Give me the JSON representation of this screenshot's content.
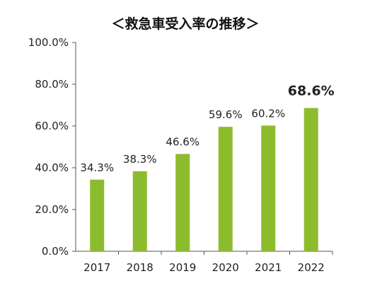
{
  "chart_data": {
    "type": "bar",
    "title": "＜救急車受入率の推移＞",
    "categories": [
      "2017",
      "2018",
      "2019",
      "2020",
      "2021",
      "2022"
    ],
    "values": [
      34.3,
      38.3,
      46.6,
      59.6,
      60.2,
      68.6
    ],
    "data_labels": [
      "34.3%",
      "38.3%",
      "46.6%",
      "59.6%",
      "60.2%",
      "68.6%"
    ],
    "emphasized_label_index": 5,
    "xlabel": "",
    "ylabel": "",
    "ylim": [
      0,
      100
    ],
    "y_ticks": [
      0,
      20,
      40,
      60,
      80,
      100
    ],
    "y_tick_labels": [
      "0.0%",
      "20.0%",
      "40.0%",
      "60.0%",
      "80.0%",
      "100.0%"
    ],
    "grid": false,
    "legend": "none",
    "bar_color": "#8dbb2e",
    "axis_color": "#555555"
  }
}
